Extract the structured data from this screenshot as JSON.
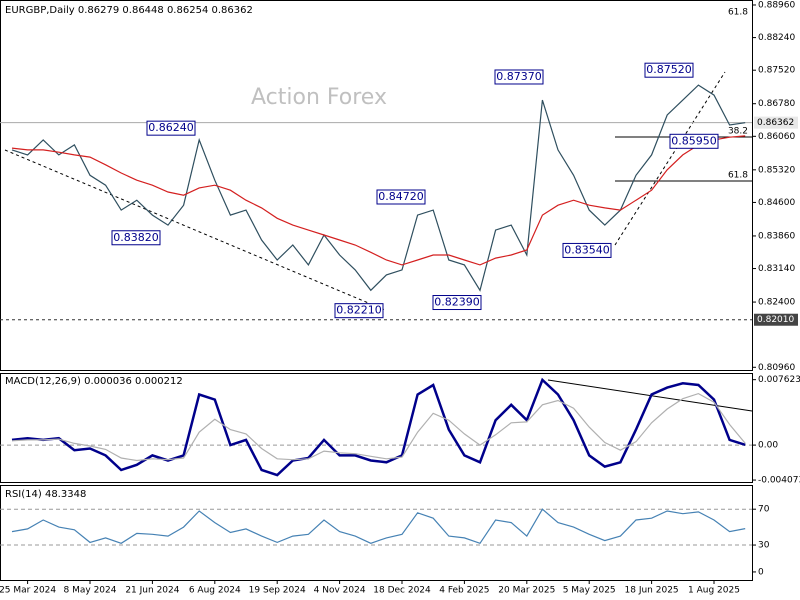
{
  "chart_data": [
    {
      "type": "line",
      "title": "EURGBP,Daily 0.86279 0.86448 0.86254 0.86362",
      "watermark": "Action Forex",
      "categories": [
        null,
        "25 Mar 2024",
        null,
        null,
        null,
        "8 May 2024",
        null,
        null,
        null,
        "21 Jun 2024",
        null,
        null,
        null,
        "6 Aug 2024",
        null,
        null,
        null,
        "19 Sep 2024",
        null,
        null,
        null,
        "4 Nov 2024",
        null,
        null,
        null,
        "18 Dec 2024",
        null,
        null,
        null,
        "4 Feb 2025",
        null,
        null,
        null,
        "20 Mar 2025",
        null,
        null,
        null,
        "5 May 2025",
        null,
        null,
        null,
        "18 Jun 2025",
        null,
        null,
        null,
        "1 Aug 2025",
        null,
        null
      ],
      "series": [
        {
          "color": "#2f4f5f",
          "values": [
            0.8576,
            0.8565,
            0.8598,
            0.8565,
            0.8587,
            0.852,
            0.8498,
            0.8443,
            0.8465,
            0.8432,
            0.841,
            0.8454,
            0.8598,
            0.8509,
            0.8432,
            0.8443,
            0.8377,
            0.8333,
            0.8366,
            0.8322,
            0.8388,
            0.8344,
            0.8311,
            0.8266,
            0.83,
            0.8311,
            0.8432,
            0.8443,
            0.8333,
            0.8322,
            0.8266,
            0.8399,
            0.841,
            0.8344,
            0.8686,
            0.8576,
            0.852,
            0.8443,
            0.841,
            0.8443,
            0.852,
            0.8565,
            0.8653,
            0.8686,
            0.8719,
            0.8697,
            0.8631,
            0.8636
          ]
        },
        {
          "color": "#d42020",
          "values": [
            0.858,
            0.8576,
            0.8576,
            0.8571,
            0.8565,
            0.856,
            0.8543,
            0.8525,
            0.8509,
            0.8498,
            0.8483,
            0.8476,
            0.8492,
            0.8498,
            0.8487,
            0.8465,
            0.8448,
            0.8425,
            0.841,
            0.8399,
            0.8388,
            0.8377,
            0.8366,
            0.835,
            0.8333,
            0.8322,
            0.8333,
            0.8344,
            0.8344,
            0.8333,
            0.8322,
            0.8337,
            0.8344,
            0.8355,
            0.8432,
            0.8454,
            0.8465,
            0.8454,
            0.8448,
            0.8443,
            0.8465,
            0.8487,
            0.8532,
            0.8565,
            0.8587,
            0.8598,
            0.8604,
            0.8607
          ]
        }
      ],
      "ylim": [
        0.809,
        0.8907
      ],
      "yticks": [
        {
          "value": 0.8896,
          "label": "0.88960"
        },
        {
          "value": 0.8824,
          "label": "0.88240"
        },
        {
          "value": 0.8752,
          "label": "0.87520"
        },
        {
          "value": 0.8678,
          "label": "0.86780"
        },
        {
          "value": 0.8606,
          "label": "0.86060"
        },
        {
          "value": 0.8532,
          "label": "0.85320"
        },
        {
          "value": 0.846,
          "label": "0.84600"
        },
        {
          "value": 0.8386,
          "label": "0.83860"
        },
        {
          "value": 0.8314,
          "label": "0.83140"
        },
        {
          "value": 0.824,
          "label": "0.82400"
        },
        {
          "value": 0.8096,
          "label": "0.80960"
        }
      ],
      "price_lines": [
        {
          "value": 0.86362,
          "label": "0.86362"
        },
        {
          "value": 0.8201,
          "label": "0.82010"
        }
      ],
      "annotations": [
        {
          "value": 0.8624,
          "label": "0.86240"
        },
        {
          "value": 0.8382,
          "label": "0.83820"
        },
        {
          "value": 0.8472,
          "label": "0.84720"
        },
        {
          "value": 0.8221,
          "label": "0.82210"
        },
        {
          "value": 0.8239,
          "label": "0.82390"
        },
        {
          "value": 0.8737,
          "label": "0.87370"
        },
        {
          "value": 0.8354,
          "label": "0.83540"
        },
        {
          "value": 0.8752,
          "label": "0.87520"
        },
        {
          "value": 0.8595,
          "label": "0.85950"
        }
      ],
      "fib_labels": [
        "61.8",
        "38.2",
        "61.8"
      ]
    },
    {
      "type": "line",
      "title": "MACD(12,26,9) 0.000036 0.000212",
      "series": [
        {
          "color": "#00008b",
          "values": [
            0.0006,
            0.0008,
            0.0006,
            0.0008,
            -0.0006,
            -0.0004,
            -0.0012,
            -0.0029,
            -0.0023,
            -0.0012,
            -0.0018,
            -0.0012,
            0.0059,
            0.0053,
            0,
            0.0006,
            -0.0029,
            -0.0035,
            -0.0018,
            -0.0015,
            0.0006,
            -0.0012,
            -0.0012,
            -0.0018,
            -0.002,
            -0.0012,
            0.0059,
            0.007,
            0.0018,
            -0.0012,
            -0.002,
            0.0029,
            0.0047,
            0.0029,
            0.0076,
            0.0059,
            0.0029,
            -0.0012,
            -0.0025,
            -0.002,
            0.0018,
            0.0059,
            0.0067,
            0.0072,
            0.007,
            0.0053,
            0.0006,
            3.6e-05
          ]
        },
        {
          "color": "#b0b0b0",
          "values": [
            0.0005,
            0.0006,
            0.0006,
            0.0007,
            0.0002,
            -0.0001,
            -0.0005,
            -0.0015,
            -0.0018,
            -0.0016,
            -0.0017,
            -0.0015,
            0.0015,
            0.003,
            0.0018,
            0.0013,
            -0.0004,
            -0.0016,
            -0.0017,
            -0.0016,
            -0.0007,
            -0.0009,
            -0.001,
            -0.0013,
            -0.0016,
            -0.0014,
            0.0015,
            0.0037,
            0.0029,
            0.0013,
            0,
            0.0012,
            0.0026,
            0.0027,
            0.0047,
            0.0052,
            0.0043,
            0.0021,
            0.0003,
            -0.0006,
            0.0004,
            0.0026,
            0.0042,
            0.0054,
            0.006,
            0.005,
            0.0024,
            0.000212
          ]
        }
      ],
      "ylim": [
        -0.0043,
        0.0084
      ],
      "yticks": [
        0.007623,
        {
          "value": 0,
          "label": "0.00"
        },
        -0.004073
      ]
    },
    {
      "type": "line",
      "title": "RSI(14) 48.3348",
      "series": [
        {
          "color": "#4682b4",
          "values": [
            45,
            48,
            58,
            50,
            47,
            33,
            38,
            32,
            43,
            42,
            40,
            50,
            68,
            55,
            44,
            48,
            40,
            33,
            40,
            42,
            58,
            45,
            40,
            32,
            38,
            42,
            66,
            60,
            40,
            38,
            32,
            58,
            55,
            40,
            70,
            55,
            50,
            42,
            35,
            40,
            58,
            60,
            68,
            65,
            67,
            58,
            45,
            48.3
          ]
        }
      ],
      "ylim": [
        -9,
        97
      ],
      "yticks": [
        70,
        30,
        0
      ],
      "dashed_levels": [
        70,
        30
      ]
    }
  ]
}
